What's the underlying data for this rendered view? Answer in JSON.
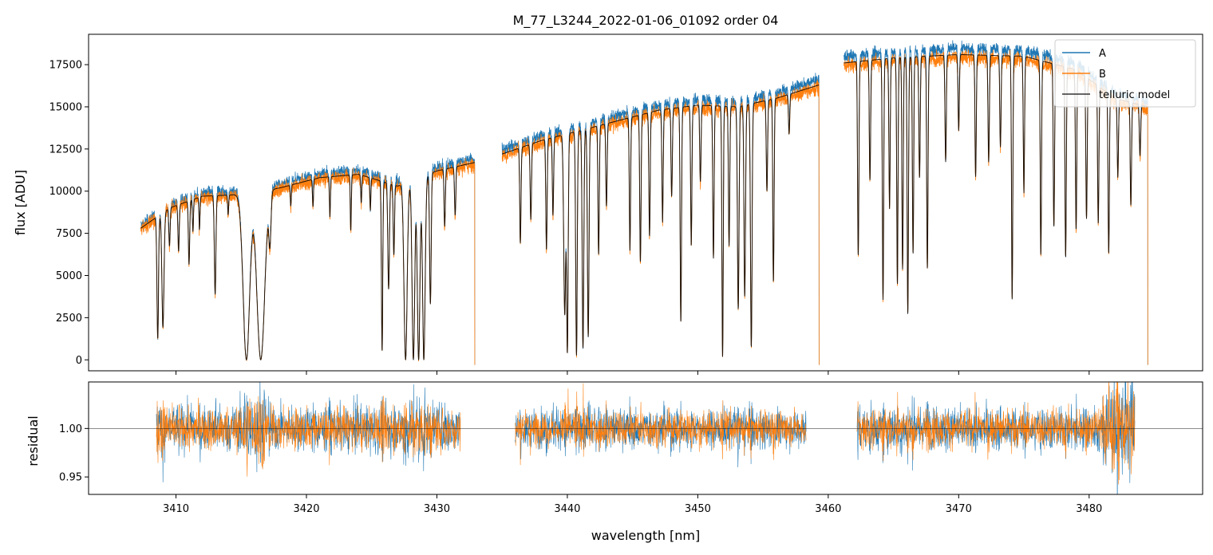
{
  "chart_data": [
    {
      "type": "line",
      "panel": "flux",
      "title": "M_77_L3244_2022-01-06_01092  order 04",
      "xlabel": "",
      "ylabel": "flux [ADU]",
      "xlim": [
        3403.3,
        3488.7
      ],
      "ylim": [
        -650,
        19300
      ],
      "yticks": [
        0,
        2500,
        5000,
        7500,
        10000,
        12500,
        15000,
        17500
      ],
      "ytick_labels": [
        "0",
        "2500",
        "5000",
        "7500",
        "10000",
        "12500",
        "15000",
        "17500"
      ],
      "xticks": [
        3410,
        3420,
        3430,
        3440,
        3450,
        3460,
        3470,
        3480
      ],
      "legend": "top-right",
      "segments": [
        {
          "start": 3407.3,
          "end": 3432.9,
          "levels": [
            [
              3407.3,
              7800
            ],
            [
              3409.5,
              9000
            ],
            [
              3412,
              9700
            ],
            [
              3415,
              9800
            ],
            [
              3418,
              10200
            ],
            [
              3421,
              10800
            ],
            [
              3424,
              11000
            ],
            [
              3427,
              10300
            ],
            [
              3430,
              11200
            ],
            [
              3432.9,
              11700
            ]
          ]
        },
        {
          "start": 3435.0,
          "end": 3459.3,
          "levels": [
            [
              3435.0,
              12200
            ],
            [
              3438,
              13000
            ],
            [
              3441,
              13600
            ],
            [
              3444,
              14200
            ],
            [
              3447,
              14800
            ],
            [
              3450,
              15100
            ],
            [
              3453,
              15000
            ],
            [
              3456,
              15500
            ],
            [
              3459.3,
              16300
            ]
          ]
        },
        {
          "start": 3461.2,
          "end": 3484.5,
          "levels": [
            [
              3461.2,
              17600
            ],
            [
              3465,
              17900
            ],
            [
              3470,
              18100
            ],
            [
              3475,
              18000
            ],
            [
              3479,
              17200
            ],
            [
              3482,
              15500
            ],
            [
              3484.5,
              15000
            ]
          ]
        }
      ],
      "absorption_lines": [
        [
          3408.6,
          0.85,
          0.06
        ],
        [
          3409.0,
          0.78,
          0.08
        ],
        [
          3409.5,
          0.25,
          0.05
        ],
        [
          3410.2,
          0.3,
          0.05
        ],
        [
          3411.0,
          0.4,
          0.05
        ],
        [
          3411.3,
          0.2,
          0.04
        ],
        [
          3411.8,
          0.2,
          0.04
        ],
        [
          3413.0,
          0.6,
          0.06
        ],
        [
          3414.0,
          0.12,
          0.04
        ],
        [
          3415.4,
          1.0,
          0.25
        ],
        [
          3416.5,
          1.0,
          0.3
        ],
        [
          3417.2,
          0.3,
          0.08
        ],
        [
          3418.8,
          0.12,
          0.04
        ],
        [
          3420.5,
          0.15,
          0.04
        ],
        [
          3421.8,
          0.22,
          0.04
        ],
        [
          3423.4,
          0.3,
          0.04
        ],
        [
          3424.2,
          0.15,
          0.04
        ],
        [
          3424.9,
          0.18,
          0.04
        ],
        [
          3425.8,
          0.95,
          0.05
        ],
        [
          3426.3,
          0.6,
          0.06
        ],
        [
          3426.7,
          0.4,
          0.05
        ],
        [
          3427.6,
          1.0,
          0.12
        ],
        [
          3428.2,
          1.0,
          0.1
        ],
        [
          3428.6,
          1.0,
          0.1
        ],
        [
          3429.0,
          1.0,
          0.1
        ],
        [
          3429.5,
          0.7,
          0.06
        ],
        [
          3430.6,
          0.3,
          0.05
        ],
        [
          3431.4,
          0.25,
          0.05
        ],
        [
          3436.4,
          0.45,
          0.05
        ],
        [
          3437.2,
          0.35,
          0.05
        ],
        [
          3438.4,
          0.5,
          0.05
        ],
        [
          3438.9,
          0.35,
          0.05
        ],
        [
          3439.8,
          0.8,
          0.08
        ],
        [
          3440.0,
          0.97,
          0.06
        ],
        [
          3440.7,
          0.98,
          0.06
        ],
        [
          3441.2,
          0.95,
          0.06
        ],
        [
          3441.6,
          0.9,
          0.06
        ],
        [
          3442.4,
          0.55,
          0.05
        ],
        [
          3443.0,
          0.35,
          0.05
        ],
        [
          3444.8,
          0.55,
          0.05
        ],
        [
          3445.6,
          0.6,
          0.05
        ],
        [
          3446.3,
          0.5,
          0.05
        ],
        [
          3447.3,
          0.45,
          0.05
        ],
        [
          3448.0,
          0.35,
          0.05
        ],
        [
          3448.7,
          0.85,
          0.05
        ],
        [
          3449.5,
          0.55,
          0.05
        ],
        [
          3450.2,
          0.3,
          0.05
        ],
        [
          3451.2,
          0.6,
          0.05
        ],
        [
          3451.9,
          0.99,
          0.05
        ],
        [
          3452.4,
          0.55,
          0.05
        ],
        [
          3453.1,
          0.8,
          0.06
        ],
        [
          3453.6,
          0.75,
          0.06
        ],
        [
          3454.1,
          0.95,
          0.06
        ],
        [
          3455.3,
          0.35,
          0.05
        ],
        [
          3455.8,
          0.7,
          0.05
        ],
        [
          3457.0,
          0.15,
          0.05
        ],
        [
          3462.3,
          0.65,
          0.05
        ],
        [
          3463.2,
          0.4,
          0.05
        ],
        [
          3464.2,
          0.8,
          0.05
        ],
        [
          3464.7,
          0.5,
          0.05
        ],
        [
          3465.3,
          0.75,
          0.05
        ],
        [
          3465.7,
          0.7,
          0.05
        ],
        [
          3466.1,
          0.85,
          0.05
        ],
        [
          3466.5,
          0.65,
          0.05
        ],
        [
          3467.0,
          0.4,
          0.05
        ],
        [
          3467.6,
          0.7,
          0.05
        ],
        [
          3469.0,
          0.35,
          0.05
        ],
        [
          3470.0,
          0.25,
          0.05
        ],
        [
          3471.3,
          0.4,
          0.05
        ],
        [
          3472.3,
          0.35,
          0.05
        ],
        [
          3473.2,
          0.3,
          0.05
        ],
        [
          3474.1,
          0.8,
          0.05
        ],
        [
          3475.0,
          0.45,
          0.05
        ],
        [
          3476.3,
          0.65,
          0.05
        ],
        [
          3477.3,
          0.55,
          0.05
        ],
        [
          3478.2,
          0.65,
          0.05
        ],
        [
          3479.0,
          0.55,
          0.05
        ],
        [
          3479.8,
          0.5,
          0.05
        ],
        [
          3480.7,
          0.5,
          0.05
        ],
        [
          3481.5,
          0.6,
          0.05
        ],
        [
          3482.2,
          0.3,
          0.05
        ],
        [
          3483.2,
          0.4,
          0.05
        ],
        [
          3483.9,
          0.2,
          0.05
        ]
      ],
      "series": [
        {
          "name": "A",
          "color": "#1f77b4"
        },
        {
          "name": "B",
          "color": "#ff7f0e"
        },
        {
          "name": "telluric model",
          "color": "#000000"
        }
      ]
    },
    {
      "type": "line",
      "panel": "residual",
      "title": "",
      "xlabel": "wavelength [nm]",
      "ylabel": "residual",
      "xlim": [
        3403.3,
        3488.7
      ],
      "ylim": [
        0.932,
        1.048
      ],
      "yticks": [
        0.95,
        1.0
      ],
      "ytick_labels": [
        "0.95",
        "1.00"
      ],
      "xticks": [
        3410,
        3420,
        3430,
        3440,
        3450,
        3460,
        3470,
        3480
      ],
      "xtick_labels": [
        "3410",
        "3420",
        "3430",
        "3440",
        "3450",
        "3460",
        "3470",
        "3480"
      ],
      "reference_line": 1.0,
      "segments": [
        {
          "start": 3408.5,
          "end": 3431.8,
          "scatter": 0.022
        },
        {
          "start": 3436.0,
          "end": 3458.3,
          "scatter": 0.018
        },
        {
          "start": 3462.2,
          "end": 3483.5,
          "scatter": 0.02
        }
      ],
      "series": [
        {
          "name": "A",
          "color": "#1f77b4"
        },
        {
          "name": "B",
          "color": "#ff7f0e"
        }
      ]
    }
  ]
}
